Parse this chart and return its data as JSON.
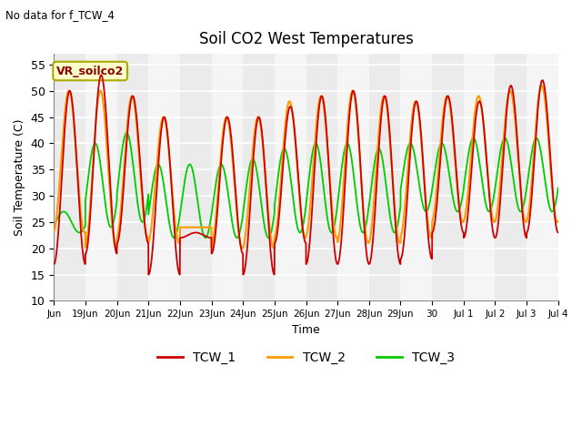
{
  "title": "Soil CO2 West Temperatures",
  "subtitle": "No data for f_TCW_4",
  "xlabel": "Time",
  "ylabel": "Soil Temperature (C)",
  "ylim": [
    10,
    57
  ],
  "yticks": [
    10,
    15,
    20,
    25,
    30,
    35,
    40,
    45,
    50,
    55
  ],
  "annotation": "VR_soilco2",
  "legend": [
    "TCW_1",
    "TCW_2",
    "TCW_3"
  ],
  "colors": {
    "TCW_1": "#cc0000",
    "TCW_2": "#ff9900",
    "TCW_3": "#00cc00"
  },
  "num_days": 16,
  "tick_labels": [
    "Jun",
    "19Jun",
    "20Jun",
    "21Jun",
    "22Jun",
    "23Jun",
    "24Jun",
    "25Jun",
    "26Jun",
    "27Jun",
    "28Jun",
    "29Jun",
    "30",
    "Jul 1",
    "Jul 2",
    "Jul 3",
    "Jul 4"
  ],
  "tcw1_peaks": [
    50,
    53,
    49,
    45,
    23,
    45,
    45,
    47,
    49,
    50,
    49,
    48,
    49,
    48,
    51,
    52
  ],
  "tcw1_troughs": [
    17,
    19,
    21,
    15,
    22,
    19,
    15,
    21,
    17,
    17,
    17,
    18,
    23,
    22,
    22,
    23
  ],
  "tcw2_peaks": [
    50,
    50,
    49,
    45,
    24,
    45,
    45,
    48,
    49,
    50,
    49,
    48,
    49,
    49,
    50,
    51
  ],
  "tcw2_troughs": [
    23,
    20,
    22,
    21,
    24,
    20,
    20,
    22,
    22,
    21,
    21,
    22,
    25,
    25,
    25,
    25
  ],
  "tcw3_peaks": [
    27,
    40,
    42,
    36,
    36,
    36,
    37,
    39,
    40,
    40,
    39,
    40,
    40,
    41,
    41,
    41
  ],
  "tcw3_troughs": [
    23,
    24,
    25,
    22,
    22,
    22,
    22,
    23,
    23,
    23,
    23,
    27,
    27,
    27,
    27,
    27
  ],
  "tcw1_phase": 0.0,
  "tcw2_phase": 0.15,
  "tcw3_phase": 1.2
}
